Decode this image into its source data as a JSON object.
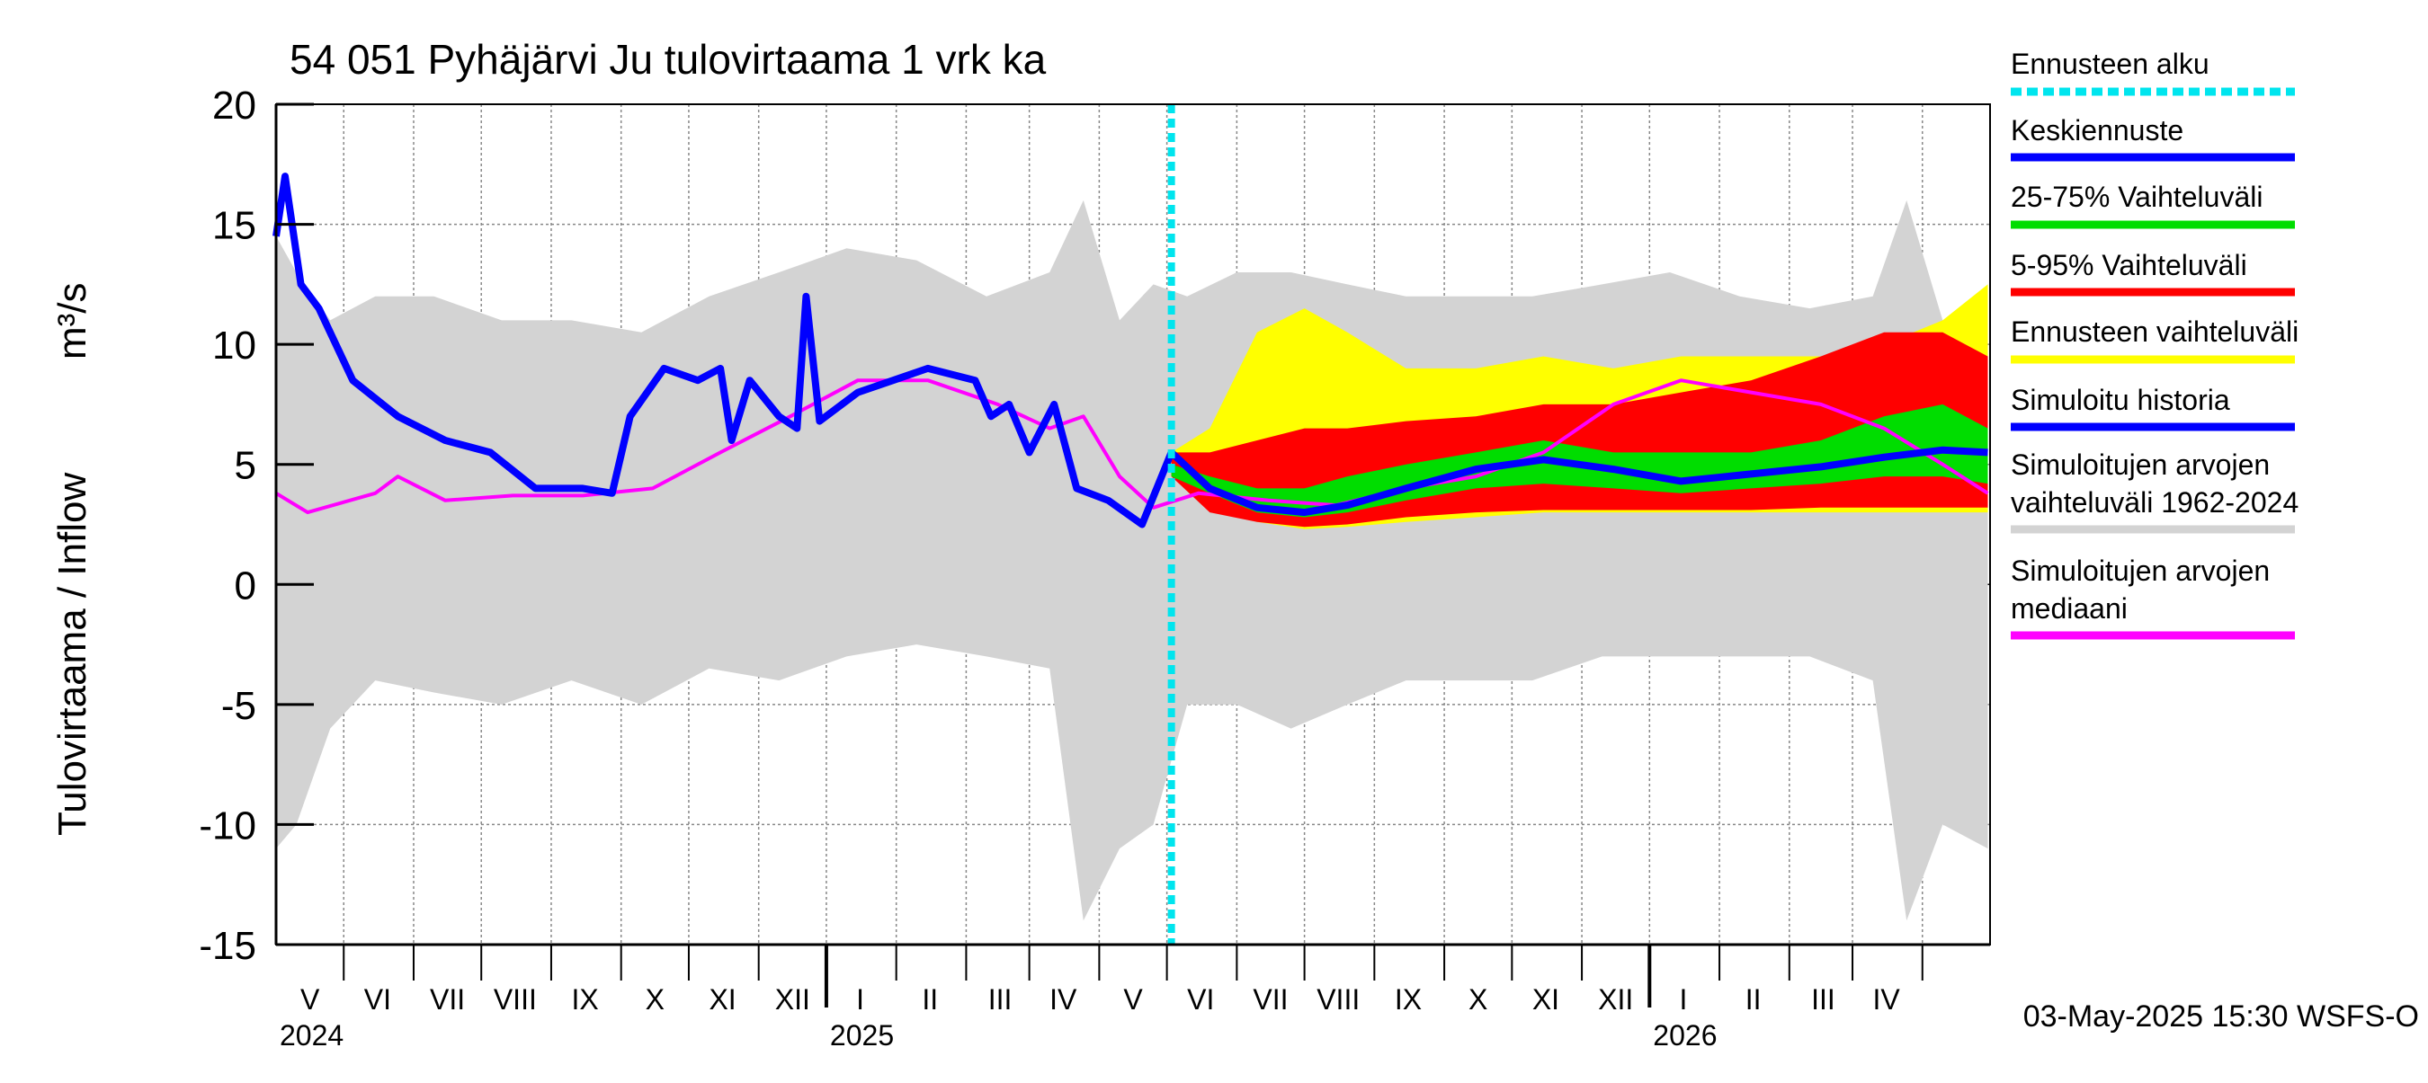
{
  "chart_data": {
    "type": "area",
    "title": "54 051 Pyhäjärvi Ju tulovirtaama 1 vrk ka",
    "ylabel_left": "Tulovirtaama / Inflow",
    "ylabel_unit": "m³/s",
    "ylim": [
      -15,
      20
    ],
    "yticks": [
      -15,
      -10,
      -5,
      0,
      5,
      10,
      15,
      20
    ],
    "x_start": "2024-04-01",
    "x_end": "2026-05-01",
    "forecast_start": "2025-05-03",
    "grid": true,
    "legend_position": "right",
    "month_labels": [
      {
        "label": "V",
        "date": "2024-04-16"
      },
      {
        "label": "VI",
        "date": "2024-05-16"
      },
      {
        "label": "VII",
        "date": "2024-06-16"
      },
      {
        "label": "VIII",
        "date": "2024-07-16"
      },
      {
        "label": "IX",
        "date": "2024-08-16"
      },
      {
        "label": "X",
        "date": "2024-09-16"
      },
      {
        "label": "XI",
        "date": "2024-10-16"
      },
      {
        "label": "XII",
        "date": "2024-11-16"
      },
      {
        "label": "I",
        "date": "2024-12-16"
      },
      {
        "label": "II",
        "date": "2025-01-16"
      },
      {
        "label": "III",
        "date": "2025-02-16"
      },
      {
        "label": "IV",
        "date": "2025-03-16"
      },
      {
        "label": "V",
        "date": "2025-04-16"
      },
      {
        "label": "VI",
        "date": "2025-05-16"
      },
      {
        "label": "VII",
        "date": "2025-06-16"
      },
      {
        "label": "VIII",
        "date": "2025-07-16"
      },
      {
        "label": "IX",
        "date": "2025-08-16"
      },
      {
        "label": "X",
        "date": "2025-09-16"
      },
      {
        "label": "XI",
        "date": "2025-10-16"
      },
      {
        "label": "XII",
        "date": "2025-11-16"
      },
      {
        "label": "I",
        "date": "2025-12-16"
      },
      {
        "label": "II",
        "date": "2026-01-16"
      },
      {
        "label": "III",
        "date": "2026-02-16"
      },
      {
        "label": "IV",
        "date": "2026-03-16"
      }
    ],
    "year_labels": [
      {
        "label": "2024",
        "date": "2024-04-01"
      },
      {
        "label": "2025",
        "date": "2024-12-01"
      },
      {
        "label": "2026",
        "date": "2025-12-01"
      }
    ],
    "month_boundaries": [
      "2024-05-01",
      "2024-06-01",
      "2024-07-01",
      "2024-08-01",
      "2024-09-01",
      "2024-10-01",
      "2024-11-01",
      "2024-12-01",
      "2025-01-01",
      "2025-02-01",
      "2025-03-01",
      "2025-04-01",
      "2025-05-01",
      "2025-06-01",
      "2025-07-01",
      "2025-08-01",
      "2025-09-01",
      "2025-10-01",
      "2025-11-01",
      "2025-12-01",
      "2026-01-01",
      "2026-02-01",
      "2026-03-01",
      "2026-04-01"
    ],
    "year_boundaries": [
      "2024-12-01",
      "2025-12-01"
    ],
    "series": [
      {
        "name": "Simuloitujen arvojen vaihteluväli 1962-2024",
        "color": "#d3d3d3",
        "type": "band",
        "x": [
          "2024-04-01",
          "2024-04-10",
          "2024-04-25",
          "2024-05-15",
          "2024-06-10",
          "2024-07-10",
          "2024-08-10",
          "2024-09-10",
          "2024-10-10",
          "2024-11-10",
          "2024-12-10",
          "2025-01-10",
          "2025-02-10",
          "2025-03-10",
          "2025-03-25",
          "2025-04-10",
          "2025-04-25",
          "2025-05-10",
          "2025-06-01",
          "2025-06-25",
          "2025-07-20",
          "2025-08-15",
          "2025-09-10",
          "2025-10-10",
          "2025-11-10",
          "2025-12-10",
          "2026-01-10",
          "2026-02-10",
          "2026-03-10",
          "2026-03-25",
          "2026-04-10",
          "2026-04-30"
        ],
        "low": [
          -11,
          -10,
          -6,
          -4,
          -4.5,
          -5,
          -4,
          -5,
          -3.5,
          -4,
          -3,
          -2.5,
          -3,
          -3.5,
          -14,
          -11,
          -10,
          -5,
          -5,
          -6,
          -5,
          -4,
          -4,
          -4,
          -3,
          -3,
          -3,
          -3,
          -4,
          -14,
          -10,
          -11
        ],
        "high": [
          14.5,
          13,
          11,
          12,
          12,
          11,
          11,
          10.5,
          12,
          13,
          14,
          13.5,
          12,
          13,
          16,
          11,
          12.5,
          12,
          13,
          13,
          12.5,
          12,
          12,
          12,
          12.5,
          13,
          12,
          11.5,
          12,
          16,
          11,
          11
        ]
      },
      {
        "name": "Ennusteen vaihteluväli",
        "color": "#ffff00",
        "type": "band",
        "x": [
          "2025-05-03",
          "2025-05-20",
          "2025-06-10",
          "2025-07-01",
          "2025-07-20",
          "2025-08-15",
          "2025-09-15",
          "2025-10-15",
          "2025-11-15",
          "2025-12-15",
          "2026-01-15",
          "2026-02-15",
          "2026-03-15",
          "2026-04-10",
          "2026-04-30"
        ],
        "low": [
          4.5,
          3.2,
          2.6,
          2.3,
          2.4,
          2.6,
          2.8,
          3.0,
          3.0,
          3.0,
          3.0,
          3.0,
          3.0,
          3.0,
          3.0
        ],
        "high": [
          5.5,
          6.5,
          10.5,
          11.5,
          10.5,
          9,
          9,
          9.5,
          9,
          9.5,
          9.5,
          9.5,
          10,
          11,
          12.5
        ]
      },
      {
        "name": "5-95% Vaihteluväli",
        "color": "#ff0000",
        "type": "band",
        "x": [
          "2025-05-03",
          "2025-05-20",
          "2025-06-10",
          "2025-07-01",
          "2025-07-20",
          "2025-08-15",
          "2025-09-15",
          "2025-10-15",
          "2025-11-15",
          "2025-12-15",
          "2026-01-15",
          "2026-02-15",
          "2026-03-15",
          "2026-04-10",
          "2026-04-30"
        ],
        "low": [
          4.5,
          3.0,
          2.6,
          2.4,
          2.5,
          2.8,
          3.0,
          3.1,
          3.1,
          3.1,
          3.1,
          3.2,
          3.2,
          3.2,
          3.2
        ],
        "high": [
          5.5,
          5.5,
          6.0,
          6.5,
          6.5,
          6.8,
          7.0,
          7.5,
          7.5,
          8.0,
          8.5,
          9.5,
          10.5,
          10.5,
          9.5
        ]
      },
      {
        "name": "25-75% Vaihteluväli",
        "color": "#00dd00",
        "type": "band",
        "x": [
          "2025-05-03",
          "2025-05-20",
          "2025-06-10",
          "2025-07-01",
          "2025-07-20",
          "2025-08-15",
          "2025-09-15",
          "2025-10-15",
          "2025-11-15",
          "2025-12-15",
          "2026-01-15",
          "2026-02-15",
          "2026-03-15",
          "2026-04-10",
          "2026-04-30"
        ],
        "low": [
          4.5,
          3.8,
          3.0,
          2.8,
          3.0,
          3.5,
          4.0,
          4.2,
          4.0,
          3.8,
          4.0,
          4.2,
          4.5,
          4.5,
          4.2
        ],
        "high": [
          5.0,
          4.5,
          4.0,
          4.0,
          4.5,
          5.0,
          5.5,
          6.0,
          5.5,
          5.5,
          5.5,
          6.0,
          7.0,
          7.5,
          6.5
        ]
      },
      {
        "name": "Simuloitujen arvojen mediaani",
        "color": "#ff00ff",
        "type": "line",
        "x": [
          "2024-04-01",
          "2024-04-15",
          "2024-05-15",
          "2024-05-25",
          "2024-06-15",
          "2024-07-15",
          "2024-08-15",
          "2024-09-15",
          "2024-10-15",
          "2024-11-15",
          "2024-12-15",
          "2025-01-15",
          "2025-02-15",
          "2025-03-10",
          "2025-03-25",
          "2025-04-10",
          "2025-04-25",
          "2025-05-15",
          "2025-06-15",
          "2025-07-15",
          "2025-08-15",
          "2025-09-15",
          "2025-10-15",
          "2025-11-15",
          "2025-12-15",
          "2026-01-15",
          "2026-02-15",
          "2026-03-15",
          "2026-04-10",
          "2026-04-30"
        ],
        "values": [
          3.8,
          3.0,
          3.8,
          4.5,
          3.5,
          3.7,
          3.7,
          4.0,
          5.5,
          7.0,
          8.5,
          8.5,
          7.5,
          6.5,
          7.0,
          4.5,
          3.2,
          3.8,
          3.5,
          3.3,
          4.0,
          4.5,
          5.5,
          7.5,
          8.5,
          8.0,
          7.5,
          6.5,
          5.0,
          3.8
        ]
      },
      {
        "name": "Simuloitu historia",
        "color": "#0000ff",
        "type": "line",
        "x": [
          "2024-04-01",
          "2024-04-05",
          "2024-04-12",
          "2024-04-20",
          "2024-05-05",
          "2024-05-25",
          "2024-06-15",
          "2024-07-05",
          "2024-07-25",
          "2024-08-15",
          "2024-08-28",
          "2024-09-05",
          "2024-09-20",
          "2024-10-05",
          "2024-10-15",
          "2024-10-20",
          "2024-10-28",
          "2024-11-10",
          "2024-11-18",
          "2024-11-22",
          "2024-11-28",
          "2024-12-15",
          "2025-01-15",
          "2025-02-05",
          "2025-02-12",
          "2025-02-20",
          "2025-03-01",
          "2025-03-12",
          "2025-03-22",
          "2025-04-05",
          "2025-04-20",
          "2025-05-03"
        ],
        "values": [
          14.5,
          17,
          12.5,
          11.5,
          8.5,
          7.0,
          6.0,
          5.5,
          4.0,
          4.0,
          3.8,
          7.0,
          9.0,
          8.5,
          9.0,
          6.0,
          8.5,
          7.0,
          6.5,
          12,
          6.8,
          8.0,
          9.0,
          8.5,
          7.0,
          7.5,
          5.5,
          7.5,
          4.0,
          3.5,
          2.5,
          5.5
        ]
      },
      {
        "name": "Keskiennuste",
        "color": "#0000ff",
        "type": "line",
        "x": [
          "2025-05-03",
          "2025-05-20",
          "2025-06-10",
          "2025-07-01",
          "2025-07-20",
          "2025-08-15",
          "2025-09-15",
          "2025-10-15",
          "2025-11-15",
          "2025-12-15",
          "2026-01-15",
          "2026-02-15",
          "2026-03-15",
          "2026-04-10",
          "2026-04-30"
        ],
        "values": [
          5.5,
          4.0,
          3.2,
          3.0,
          3.3,
          4.0,
          4.8,
          5.2,
          4.8,
          4.3,
          4.6,
          4.9,
          5.3,
          5.6,
          5.5
        ]
      }
    ]
  },
  "legend": [
    {
      "label": "Ennusteen alku",
      "color": "#00e5ee",
      "style": "dotted"
    },
    {
      "label": "Keskiennuste",
      "color": "#0000ff",
      "style": "solid"
    },
    {
      "label": "25-75% Vaihteluväli",
      "color": "#00dd00",
      "style": "solid"
    },
    {
      "label": "5-95% Vaihteluväli",
      "color": "#ff0000",
      "style": "solid"
    },
    {
      "label": "Ennusteen vaihteluväli",
      "color": "#ffff00",
      "style": "solid"
    },
    {
      "label": "Simuloitu historia",
      "color": "#0000ff",
      "style": "solid"
    },
    {
      "label": "Simuloitujen arvojen vaihteluväli 1962-2024",
      "color": "#d3d3d3",
      "style": "solid"
    },
    {
      "label": "Simuloitujen arvojen mediaani",
      "color": "#ff00ff",
      "style": "solid"
    }
  ],
  "footer": "03-May-2025 15:30 WSFS-O"
}
